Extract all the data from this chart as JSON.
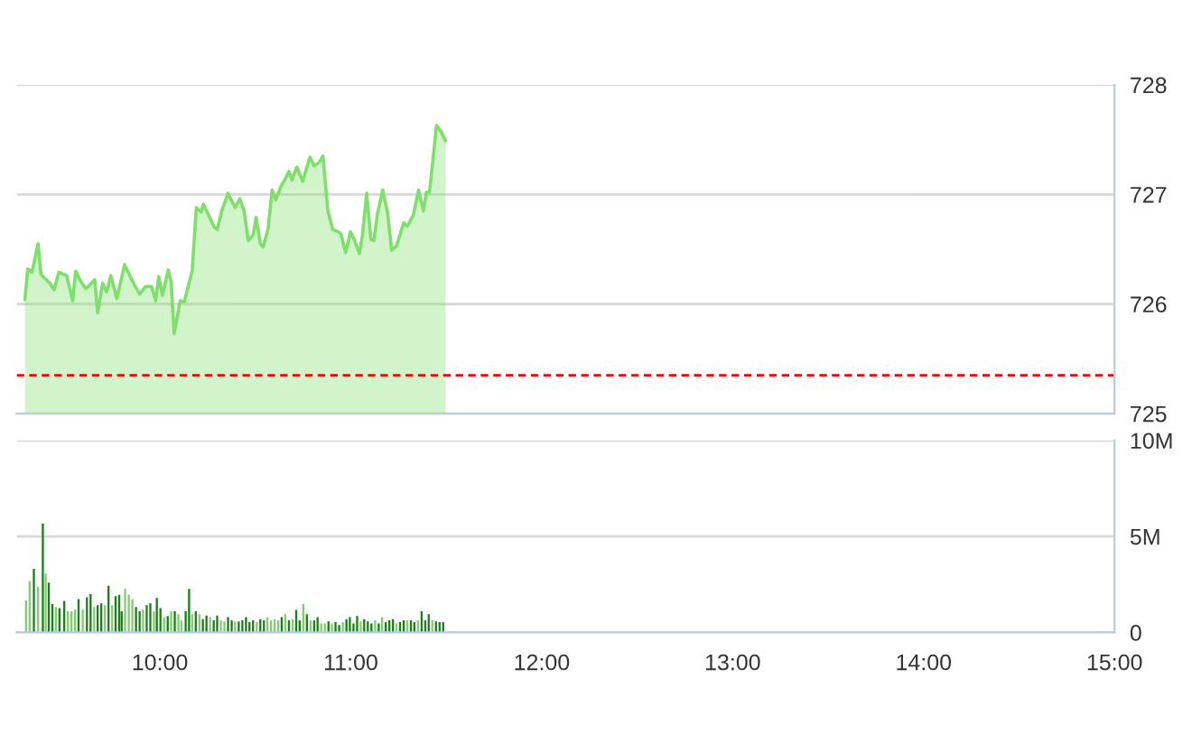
{
  "chart_data": [
    {
      "type": "area",
      "xlim": [
        9.25,
        15
      ],
      "ylim": [
        725,
        728
      ],
      "yticks": [
        725,
        726,
        727,
        728
      ],
      "grid": "y",
      "tick_labels": "y",
      "ref_lines": [
        {
          "axis": "y",
          "value": 725.35,
          "color": "#ff0000",
          "line_style": "dashed"
        }
      ],
      "series": [
        {
          "color": "#7ee06a",
          "x": [
            9.293,
            9.308,
            9.33,
            9.362,
            9.377,
            9.424,
            9.446,
            9.471,
            9.512,
            9.543,
            9.559,
            9.581,
            9.612,
            9.659,
            9.674,
            9.7,
            9.721,
            9.743,
            9.775,
            9.815,
            9.862,
            9.894,
            9.925,
            9.956,
            9.978,
            9.994,
            10.013,
            10.044,
            10.059,
            10.075,
            10.106,
            10.128,
            10.169,
            10.191,
            10.216,
            10.228,
            10.285,
            10.3,
            10.326,
            10.357,
            10.394,
            10.419,
            10.441,
            10.463,
            10.488,
            10.504,
            10.526,
            10.541,
            10.567,
            10.588,
            10.607,
            10.635,
            10.654,
            10.676,
            10.692,
            10.717,
            10.748,
            10.786,
            10.808,
            10.833,
            10.854,
            10.88,
            10.905,
            10.933,
            10.948,
            10.973,
            10.998,
            11.02,
            11.045,
            11.061,
            11.083,
            11.105,
            11.121,
            11.139,
            11.167,
            11.192,
            11.214,
            11.239,
            11.277,
            11.296,
            11.327,
            11.355,
            11.38,
            11.396,
            11.412,
            11.449,
            11.474,
            11.496
          ],
          "values": [
            726.04,
            726.32,
            726.29,
            726.55,
            726.27,
            726.19,
            726.13,
            726.29,
            726.26,
            726.03,
            726.3,
            726.22,
            726.14,
            726.22,
            725.92,
            726.19,
            726.11,
            726.26,
            726.05,
            726.36,
            726.19,
            726.09,
            726.16,
            726.16,
            726.03,
            726.25,
            726.08,
            726.31,
            726.2,
            725.73,
            726.03,
            726.02,
            726.3,
            726.88,
            726.84,
            726.91,
            726.7,
            726.68,
            726.86,
            727.01,
            726.88,
            726.96,
            726.85,
            726.58,
            726.63,
            726.79,
            726.55,
            726.52,
            726.69,
            727.04,
            726.95,
            727.08,
            727.13,
            727.21,
            727.13,
            727.25,
            727.12,
            727.34,
            727.26,
            727.29,
            727.35,
            726.85,
            726.68,
            726.66,
            726.64,
            726.47,
            726.66,
            726.58,
            726.46,
            726.63,
            727.01,
            726.59,
            726.58,
            726.82,
            727.04,
            726.84,
            726.49,
            726.53,
            726.74,
            726.71,
            726.81,
            727.04,
            726.85,
            727.02,
            727.02,
            727.63,
            727.57,
            727.49
          ]
        }
      ]
    },
    {
      "type": "bar",
      "xlim": [
        9.25,
        15
      ],
      "ylim": [
        0,
        10
      ],
      "yticks": [
        0,
        {
          "value": 5,
          "label": "5M"
        },
        {
          "value": 10,
          "label": "10M"
        }
      ],
      "grid": "y",
      "xticks": [
        {
          "value": 10,
          "label": "10:00"
        },
        {
          "value": 11,
          "label": "11:00"
        },
        {
          "value": 12,
          "label": "12:00"
        },
        {
          "value": 13,
          "label": "13:00"
        },
        {
          "value": 14,
          "label": "14:00"
        },
        {
          "value": 15,
          "label": "15:00"
        }
      ],
      "x": [
        9.299,
        9.318,
        9.34,
        9.362,
        9.387,
        9.402,
        9.418,
        9.437,
        9.455,
        9.474,
        9.499,
        9.518,
        9.537,
        9.556,
        9.574,
        9.596,
        9.618,
        9.637,
        9.656,
        9.674,
        9.693,
        9.712,
        9.731,
        9.75,
        9.768,
        9.787,
        9.8,
        9.818,
        9.837,
        9.856,
        9.875,
        9.894,
        9.912,
        9.931,
        9.95,
        9.969,
        9.984,
        10.003,
        10.022,
        10.041,
        10.059,
        10.078,
        10.097,
        10.113,
        10.135,
        10.153,
        10.169,
        10.188,
        10.207,
        10.225,
        10.244,
        10.263,
        10.282,
        10.3,
        10.319,
        10.338,
        10.357,
        10.376,
        10.394,
        10.413,
        10.432,
        10.451,
        10.469,
        10.488,
        10.507,
        10.526,
        10.545,
        10.563,
        10.582,
        10.601,
        10.62,
        10.638,
        10.657,
        10.676,
        10.695,
        10.714,
        10.732,
        10.751,
        10.77,
        10.789,
        10.808,
        10.826,
        10.845,
        10.864,
        10.883,
        10.901,
        10.92,
        10.939,
        10.958,
        10.977,
        10.995,
        11.014,
        11.033,
        11.052,
        11.07,
        11.089,
        11.108,
        11.127,
        11.146,
        11.164,
        11.183,
        11.202,
        11.221,
        11.239,
        11.258,
        11.277,
        11.296,
        11.315,
        11.333,
        11.352,
        11.371,
        11.39,
        11.408,
        11.427,
        11.446,
        11.465,
        11.484
      ],
      "values": [
        1.67,
        2.68,
        3.31,
        2.37,
        5.68,
        3.06,
        2.59,
        1.48,
        1.32,
        1.26,
        1.64,
        1.1,
        1.1,
        1.2,
        1.74,
        1.2,
        1.83,
        1.99,
        1.32,
        1.42,
        1.51,
        1.42,
        2.43,
        1.42,
        1.89,
        1.96,
        1.1,
        2.27,
        1.96,
        1.74,
        1.32,
        1.1,
        1.2,
        1.42,
        1.51,
        1.1,
        1.8,
        1.26,
        0.79,
        0.85,
        1.1,
        1.1,
        0.95,
        0.63,
        1.1,
        2.27,
        0.95,
        1.1,
        0.95,
        0.69,
        0.88,
        0.79,
        0.63,
        0.88,
        0.63,
        0.57,
        0.79,
        0.63,
        0.57,
        0.57,
        0.63,
        0.79,
        0.54,
        0.63,
        0.54,
        0.69,
        0.63,
        0.79,
        0.63,
        0.69,
        0.63,
        0.79,
        0.95,
        0.63,
        0.69,
        1.17,
        0.63,
        1.48,
        0.95,
        0.63,
        0.63,
        0.79,
        0.47,
        0.47,
        0.57,
        0.47,
        0.54,
        0.38,
        0.54,
        0.69,
        0.79,
        0.47,
        0.85,
        0.57,
        0.69,
        0.57,
        0.47,
        0.63,
        0.47,
        0.79,
        0.54,
        0.63,
        0.69,
        0.47,
        0.54,
        0.63,
        0.63,
        0.63,
        0.54,
        0.63,
        1.1,
        0.63,
        0.95,
        0.63,
        0.57,
        0.54,
        0.54
      ],
      "colors": [
        "#7fcf6f",
        "#7fcf6f",
        "#1a7f1a",
        "#7fcf6f",
        "#1a7f1a",
        "#7fcf6f",
        "#1a7f1a",
        "#1a7f1a",
        "#7fcf6f",
        "#1a7f1a",
        "#1a7f1a",
        "#7fcf6f",
        "#7fcf6f",
        "#7fcf6f",
        "#1a7f1a",
        "#7fcf6f",
        "#1a7f1a",
        "#1a7f1a",
        "#7fcf6f",
        "#1a7f1a",
        "#1a7f1a",
        "#7fcf6f",
        "#1a7f1a",
        "#7fcf6f",
        "#1a7f1a",
        "#1a7f1a",
        "#1a7f1a",
        "#7fcf6f",
        "#7fcf6f",
        "#7fcf6f",
        "#1a7f1a",
        "#1a7f1a",
        "#7fcf6f",
        "#1a7f1a",
        "#1a7f1a",
        "#7fcf6f",
        "#1a7f1a",
        "#1a7f1a",
        "#7fcf6f",
        "#1a7f1a",
        "#7fcf6f",
        "#1a7f1a",
        "#7fcf6f",
        "#7fcf6f",
        "#1a7f1a",
        "#1a7f1a",
        "#7fcf6f",
        "#1a7f1a",
        "#7fcf6f",
        "#1a7f1a",
        "#1a7f1a",
        "#7fcf6f",
        "#1a7f1a",
        "#1a7f1a",
        "#7fcf6f",
        "#7fcf6f",
        "#1a7f1a",
        "#1a7f1a",
        "#7fcf6f",
        "#1a7f1a",
        "#1a7f1a",
        "#1a7f1a",
        "#1a7f1a",
        "#1a7f1a",
        "#7fcf6f",
        "#1a7f1a",
        "#1a7f1a",
        "#7fcf6f",
        "#7fcf6f",
        "#7fcf6f",
        "#7fcf6f",
        "#1a7f1a",
        "#7fcf6f",
        "#1a7f1a",
        "#7fcf6f",
        "#1a7f1a",
        "#1a7f1a",
        "#7fcf6f",
        "#1a7f1a",
        "#7fcf6f",
        "#1a7f1a",
        "#1a7f1a",
        "#7fcf6f",
        "#7fcf6f",
        "#1a7f1a",
        "#7fcf6f",
        "#1a7f1a",
        "#1a7f1a",
        "#7fcf6f",
        "#1a7f1a",
        "#1a7f1a",
        "#1a7f1a",
        "#1a7f1a",
        "#7fcf6f",
        "#1a7f1a",
        "#1a7f1a",
        "#1a7f1a",
        "#7fcf6f",
        "#1a7f1a",
        "#7fcf6f",
        "#1a7f1a",
        "#1a7f1a",
        "#1a7f1a",
        "#7fcf6f",
        "#1a7f1a",
        "#1a7f1a",
        "#7fcf6f",
        "#1a7f1a",
        "#1a7f1a",
        "#7fcf6f",
        "#1a7f1a",
        "#1a7f1a",
        "#1a7f1a",
        "#7fcf6f",
        "#1a7f1a",
        "#1a7f1a",
        "#1a7f1a"
      ]
    }
  ]
}
